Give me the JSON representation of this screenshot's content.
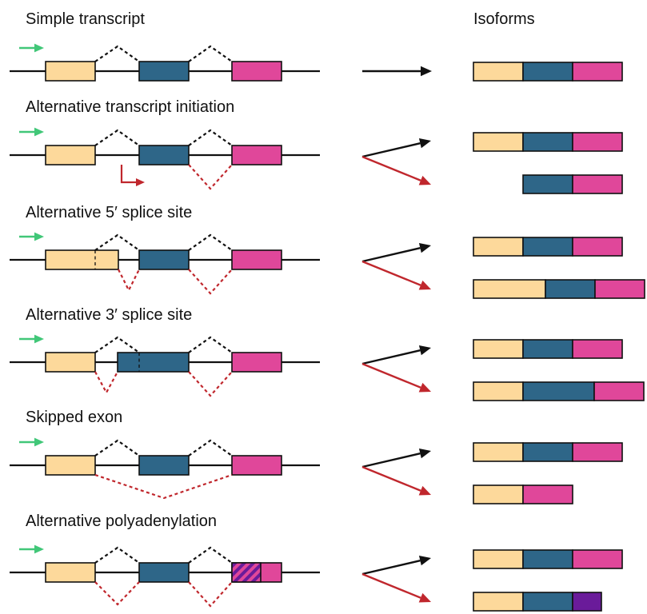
{
  "header": {
    "isoforms_label": "Isoforms"
  },
  "colors": {
    "exon1": "#FDD99B",
    "exon2": "#2E6688",
    "exon3": "#E0479A",
    "polyA_exon": "#6A1B9A",
    "stroke": "#111111",
    "black_splice": "#111111",
    "red_splice": "#C0272D",
    "start_arrow": "#41C778",
    "outcome_black": "#111111",
    "outcome_red": "#C0272D"
  },
  "panels": [
    {
      "title": "Simple transcript",
      "variant": "simple",
      "isoforms": [
        [
          "exon1",
          "exon2",
          "exon3"
        ]
      ]
    },
    {
      "title": "Alternative transcript initiation",
      "variant": "alt_initiation",
      "isoforms": [
        [
          "exon1",
          "exon2",
          "exon3"
        ],
        [
          "exon2",
          "exon3"
        ]
      ]
    },
    {
      "title": "Alternative 5′ splice site",
      "variant": "alt_5prime",
      "isoforms": [
        [
          "exon1",
          "exon2",
          "exon3"
        ],
        [
          "exon1_long",
          "exon2",
          "exon3"
        ]
      ]
    },
    {
      "title": "Alternative 3′ splice site",
      "variant": "alt_3prime",
      "isoforms": [
        [
          "exon1",
          "exon2",
          "exon3"
        ],
        [
          "exon1",
          "exon2_long",
          "exon3"
        ]
      ]
    },
    {
      "title": "Skipped exon",
      "variant": "skipped_exon",
      "isoforms": [
        [
          "exon1",
          "exon2",
          "exon3"
        ],
        [
          "exon1",
          "exon3"
        ]
      ]
    },
    {
      "title": "Alternative polyadenylation",
      "variant": "alt_polyA",
      "isoforms": [
        [
          "exon1",
          "exon2",
          "exon3"
        ],
        [
          "exon1",
          "exon2",
          "polyA_exon_short"
        ]
      ]
    }
  ]
}
